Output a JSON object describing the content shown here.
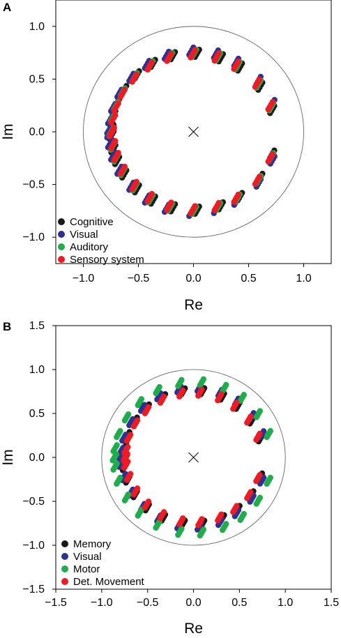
{
  "colors": {
    "black": "#1a1a1a",
    "blue": "#2e3192",
    "green": "#1fad4b",
    "red": "#ed1c24",
    "circle": "#555555"
  },
  "chart_data": [
    {
      "panel": "A",
      "type": "scatter",
      "xlabel": "Re",
      "ylabel": "Im",
      "xlim": [
        -1.25,
        1.25
      ],
      "ylim": [
        -1.25,
        1.25
      ],
      "xticks": [
        -1.0,
        -0.5,
        0.0,
        0.5,
        1.0
      ],
      "yticks": [
        -1.0,
        -0.5,
        0.0,
        0.5,
        1.0
      ],
      "xtick_labels": [
        "−1.0",
        "−0.5",
        "0.0",
        "0.5",
        "1.0"
      ],
      "ytick_labels": [
        "−1.0",
        "−0.5",
        "0.0",
        "0.5",
        "1.0"
      ],
      "unit_circle": true,
      "origin_marker": "x",
      "legend_position": "bottom-left",
      "eigenvalue_angles_deg": [
        19,
        38,
        58,
        73,
        90,
        107,
        122,
        136,
        150,
        161,
        170,
        180
      ],
      "series": [
        {
          "name": "Cognitive",
          "color_key": "black",
          "radius": 0.745,
          "angle_offset_deg": -2.5
        },
        {
          "name": "Visual",
          "color_key": "blue",
          "radius": 0.765,
          "angle_offset_deg": 1.5
        },
        {
          "name": "Auditory",
          "color_key": "green",
          "radius": 0.745,
          "angle_offset_deg": -0.5
        },
        {
          "name": "Sensory system",
          "color_key": "red",
          "radius": 0.74,
          "angle_offset_deg": 0.5
        }
      ]
    },
    {
      "panel": "B",
      "type": "scatter",
      "xlabel": "Re",
      "ylabel": "Im",
      "xlim": [
        -1.5,
        1.5
      ],
      "ylim": [
        -1.5,
        1.5
      ],
      "xticks": [
        -1.5,
        -1.0,
        -0.5,
        0.0,
        0.5,
        1.0,
        1.5
      ],
      "yticks": [
        -1.5,
        -1.0,
        -0.5,
        0.0,
        0.5,
        1.0,
        1.5
      ],
      "xtick_labels": [
        "−1.5",
        "−1.0",
        "−0.5",
        "0.0",
        "0.5",
        "1.0",
        "1.5"
      ],
      "ytick_labels": [
        "−1.5",
        "−1.0",
        "−0.5",
        "0.0",
        "0.5",
        "1.0",
        "1.5"
      ],
      "unit_circle": true,
      "origin_marker": "x",
      "legend_position": "bottom-left",
      "eigenvalue_angles_deg": [
        18,
        35,
        52,
        67,
        84,
        100,
        117,
        133,
        148,
        162,
        173,
        180
      ],
      "series": [
        {
          "name": "Memory",
          "color_key": "black",
          "radius": 0.76,
          "angle_offset_deg": -1.5
        },
        {
          "name": "Visual",
          "color_key": "blue",
          "radius": 0.79,
          "angle_offset_deg": 1.5
        },
        {
          "name": "Motor",
          "color_key": "green",
          "radius": 0.86,
          "angle_offset_deg": 0.0
        },
        {
          "name": "Det. Movement",
          "color_key": "red",
          "radius": 0.74,
          "angle_offset_deg": 0.5
        }
      ]
    }
  ]
}
